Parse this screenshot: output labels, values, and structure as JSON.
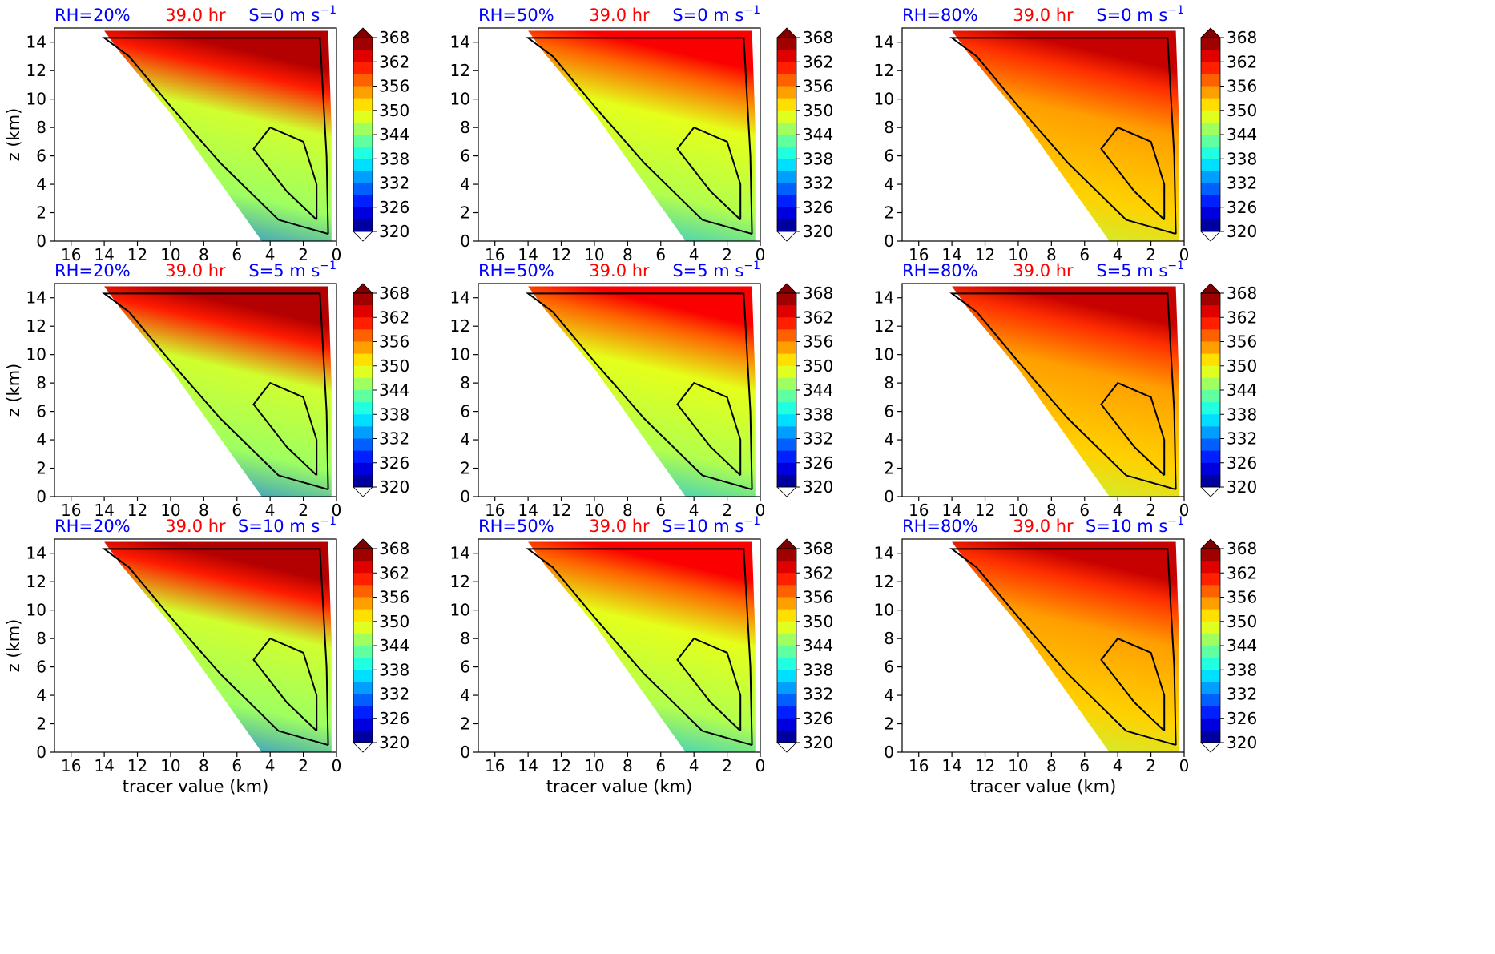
{
  "figure": {
    "ylabel": "z (km)",
    "xlabel": "tracer value (km)",
    "colormap": "jet",
    "colorbar_ticks": [
      "368",
      "362",
      "356",
      "350",
      "344",
      "338",
      "332",
      "326",
      "320"
    ],
    "label_colors": {
      "rh": "#0000ff",
      "time": "#ff0000",
      "shear": "#0000ff"
    }
  },
  "chart_data": [
    {
      "type": "heatmap",
      "rh": "RH=20%",
      "time": "39.0 hr",
      "shear": "S=0 m s",
      "shear_exp": "−1",
      "xticks": [
        "16",
        "14",
        "12",
        "10",
        "8",
        "6",
        "4",
        "2",
        "0"
      ],
      "yticks": [
        "0",
        "2",
        "4",
        "6",
        "8",
        "10",
        "12",
        "14"
      ],
      "xlim": [
        17,
        0
      ],
      "ylim": [
        0,
        15
      ],
      "colorbar_range": [
        320,
        368
      ]
    },
    {
      "type": "heatmap",
      "rh": "RH=50%",
      "time": "39.0 hr",
      "shear": "S=0 m s",
      "shear_exp": "−1",
      "xticks": [
        "16",
        "14",
        "12",
        "10",
        "8",
        "6",
        "4",
        "2",
        "0"
      ],
      "yticks": [
        "0",
        "2",
        "4",
        "6",
        "8",
        "10",
        "12",
        "14"
      ],
      "xlim": [
        17,
        0
      ],
      "ylim": [
        0,
        15
      ],
      "colorbar_range": [
        320,
        368
      ]
    },
    {
      "type": "heatmap",
      "rh": "RH=80%",
      "time": "39.0 hr",
      "shear": "S=0 m s",
      "shear_exp": "−1",
      "xticks": [
        "16",
        "14",
        "12",
        "10",
        "8",
        "6",
        "4",
        "2",
        "0"
      ],
      "yticks": [
        "0",
        "2",
        "4",
        "6",
        "8",
        "10",
        "12",
        "14"
      ],
      "xlim": [
        17,
        0
      ],
      "ylim": [
        0,
        15
      ],
      "colorbar_range": [
        320,
        368
      ]
    },
    {
      "type": "heatmap",
      "rh": "RH=20%",
      "time": "39.0 hr",
      "shear": "S=5 m s",
      "shear_exp": "−1",
      "xticks": [
        "16",
        "14",
        "12",
        "10",
        "8",
        "6",
        "4",
        "2",
        "0"
      ],
      "yticks": [
        "0",
        "2",
        "4",
        "6",
        "8",
        "10",
        "12",
        "14"
      ],
      "xlim": [
        17,
        0
      ],
      "ylim": [
        0,
        15
      ],
      "colorbar_range": [
        320,
        368
      ]
    },
    {
      "type": "heatmap",
      "rh": "RH=50%",
      "time": "39.0 hr",
      "shear": "S=5 m s",
      "shear_exp": "−1",
      "xticks": [
        "16",
        "14",
        "12",
        "10",
        "8",
        "6",
        "4",
        "2",
        "0"
      ],
      "yticks": [
        "0",
        "2",
        "4",
        "6",
        "8",
        "10",
        "12",
        "14"
      ],
      "xlim": [
        17,
        0
      ],
      "ylim": [
        0,
        15
      ],
      "colorbar_range": [
        320,
        368
      ]
    },
    {
      "type": "heatmap",
      "rh": "RH=80%",
      "time": "39.0 hr",
      "shear": "S=5 m s",
      "shear_exp": "−1",
      "xticks": [
        "16",
        "14",
        "12",
        "10",
        "8",
        "6",
        "4",
        "2",
        "0"
      ],
      "yticks": [
        "0",
        "2",
        "4",
        "6",
        "8",
        "10",
        "12",
        "14"
      ],
      "xlim": [
        17,
        0
      ],
      "ylim": [
        0,
        15
      ],
      "colorbar_range": [
        320,
        368
      ]
    },
    {
      "type": "heatmap",
      "rh": "RH=20%",
      "time": "39.0 hr",
      "shear": "S=10 m s",
      "shear_exp": "−1",
      "xticks": [
        "16",
        "14",
        "12",
        "10",
        "8",
        "6",
        "4",
        "2",
        "0"
      ],
      "yticks": [
        "0",
        "2",
        "4",
        "6",
        "8",
        "10",
        "12",
        "14"
      ],
      "xlim": [
        17,
        0
      ],
      "ylim": [
        0,
        15
      ],
      "colorbar_range": [
        320,
        368
      ]
    },
    {
      "type": "heatmap",
      "rh": "RH=50%",
      "time": "39.0 hr",
      "shear": "S=10 m s",
      "shear_exp": "−1",
      "xticks": [
        "16",
        "14",
        "12",
        "10",
        "8",
        "6",
        "4",
        "2",
        "0"
      ],
      "yticks": [
        "0",
        "2",
        "4",
        "6",
        "8",
        "10",
        "12",
        "14"
      ],
      "xlim": [
        17,
        0
      ],
      "ylim": [
        0,
        15
      ],
      "colorbar_range": [
        320,
        368
      ]
    },
    {
      "type": "heatmap",
      "rh": "RH=80%",
      "time": "39.0 hr",
      "shear": "S=10 m s",
      "shear_exp": "−1",
      "xticks": [
        "16",
        "14",
        "12",
        "10",
        "8",
        "6",
        "4",
        "2",
        "0"
      ],
      "yticks": [
        "0",
        "2",
        "4",
        "6",
        "8",
        "10",
        "12",
        "14"
      ],
      "xlim": [
        17,
        0
      ],
      "ylim": [
        0,
        15
      ],
      "colorbar_range": [
        320,
        368
      ]
    }
  ]
}
